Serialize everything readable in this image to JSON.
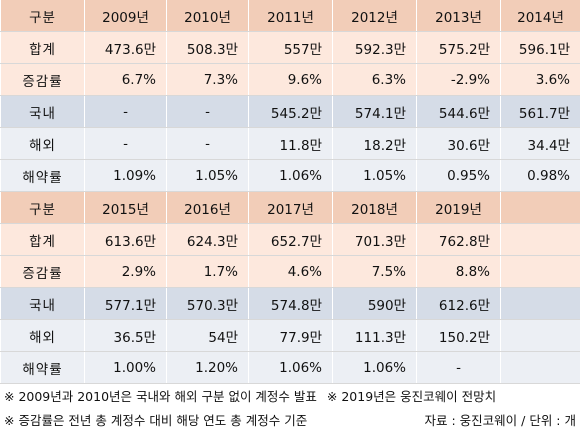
{
  "section1": {
    "header": [
      "구분",
      "2009년",
      "2010년",
      "2011년",
      "2012년",
      "2013년",
      "2014년"
    ],
    "rows": [
      {
        "label": "합계",
        "values": [
          "473.6만",
          "508.3만",
          "557만",
          "592.3만",
          "575.2만",
          "596.1만"
        ],
        "bg": "peach"
      },
      {
        "label": "증감률",
        "values": [
          "6.7%",
          "7.3%",
          "9.6%",
          "6.3%",
          "-2.9%",
          "3.6%"
        ],
        "bg": "peach"
      },
      {
        "label": "국내",
        "values": [
          "-",
          "-",
          "545.2만",
          "574.1만",
          "544.6만",
          "561.7만"
        ],
        "bg": "blue"
      },
      {
        "label": "해외",
        "values": [
          "-",
          "-",
          "11.8만",
          "18.2만",
          "30.6만",
          "34.4만"
        ],
        "bg": "light"
      },
      {
        "label": "해약률",
        "values": [
          "1.09%",
          "1.05%",
          "1.06%",
          "1.05%",
          "0.95%",
          "0.98%"
        ],
        "bg": "light"
      }
    ]
  },
  "section2": {
    "header": [
      "구분",
      "2015년",
      "2016년",
      "2017년",
      "2018년",
      "2019년",
      ""
    ],
    "rows": [
      {
        "label": "합계",
        "values": [
          "613.6만",
          "624.3만",
          "652.7만",
          "701.3만",
          "762.8만",
          ""
        ],
        "bg": "peach"
      },
      {
        "label": "증감률",
        "values": [
          "2.9%",
          "1.7%",
          "4.6%",
          "7.5%",
          "8.8%",
          ""
        ],
        "bg": "peach"
      },
      {
        "label": "국내",
        "values": [
          "577.1만",
          "570.3만",
          "574.8만",
          "590만",
          "612.6만",
          ""
        ],
        "bg": "blue"
      },
      {
        "label": "해외",
        "values": [
          "36.5만",
          "54만",
          "77.9만",
          "111.3만",
          "150.2만",
          ""
        ],
        "bg": "light"
      },
      {
        "label": "해약률",
        "values": [
          "1.00%",
          "1.20%",
          "1.06%",
          "1.06%",
          "-",
          ""
        ],
        "bg": "light"
      }
    ]
  },
  "notes": {
    "line1_a": "※ 2009년과 2010년은 국내와 해외 구분 없이 계정수 발표",
    "line1_b": "※ 2019년은 웅진코웨이 전망치",
    "line2": "※ 증감률은 전년 총 계정수 대비 해당 연도 총 계정수 기준",
    "source": "자료 : 웅진코웨이 / 단위 : 개"
  }
}
